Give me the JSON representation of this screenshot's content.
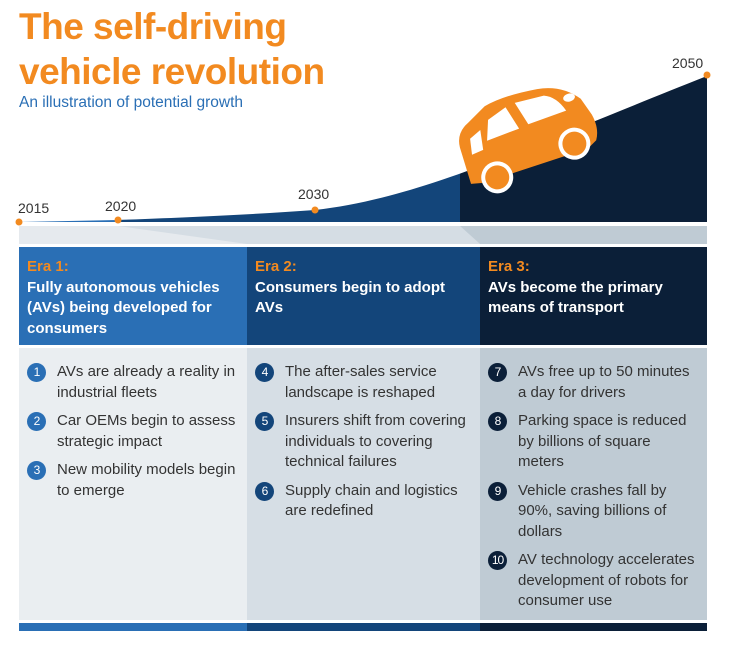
{
  "title_lines": [
    "The self-driving",
    "vehicle revolution"
  ],
  "subtitle": "An illustration of potential growth",
  "timeline": {
    "years": [
      "2015",
      "2020",
      "2030",
      "2050"
    ]
  },
  "colors": {
    "accent": "#f28a20",
    "era1": "#2a6fb5",
    "era2": "#13457a",
    "era3": "#0b1f38"
  },
  "eras": [
    {
      "label": "Era 1:",
      "heading": "Fully autonomous vehicles (AVs) being developed for consumers",
      "items": [
        {
          "n": "1",
          "text": "AVs are already a reality in industrial fleets"
        },
        {
          "n": "2",
          "text": "Car OEMs begin to assess strategic impact"
        },
        {
          "n": "3",
          "text": "New mobility models begin to emerge"
        }
      ]
    },
    {
      "label": "Era 2:",
      "heading": "Consumers begin to adopt AVs",
      "items": [
        {
          "n": "4",
          "text": "The after-sales service landscape is reshaped"
        },
        {
          "n": "5",
          "text": "Insurers shift from covering individuals to covering technical failures"
        },
        {
          "n": "6",
          "text": "Supply chain and logistics are redefined"
        }
      ]
    },
    {
      "label": "Era 3:",
      "heading": "AVs become the primary means of transport",
      "items": [
        {
          "n": "7",
          "text": "AVs free up to 50 minutes a day for drivers"
        },
        {
          "n": "8",
          "text": "Parking space is reduced by billions of square meters"
        },
        {
          "n": "9",
          "text": "Vehicle crashes fall by 90%, saving billions of dollars"
        },
        {
          "n": "10",
          "text": "AV technology accelerates development of robots for consumer use"
        }
      ]
    }
  ],
  "icons": {
    "car": "car-icon"
  }
}
